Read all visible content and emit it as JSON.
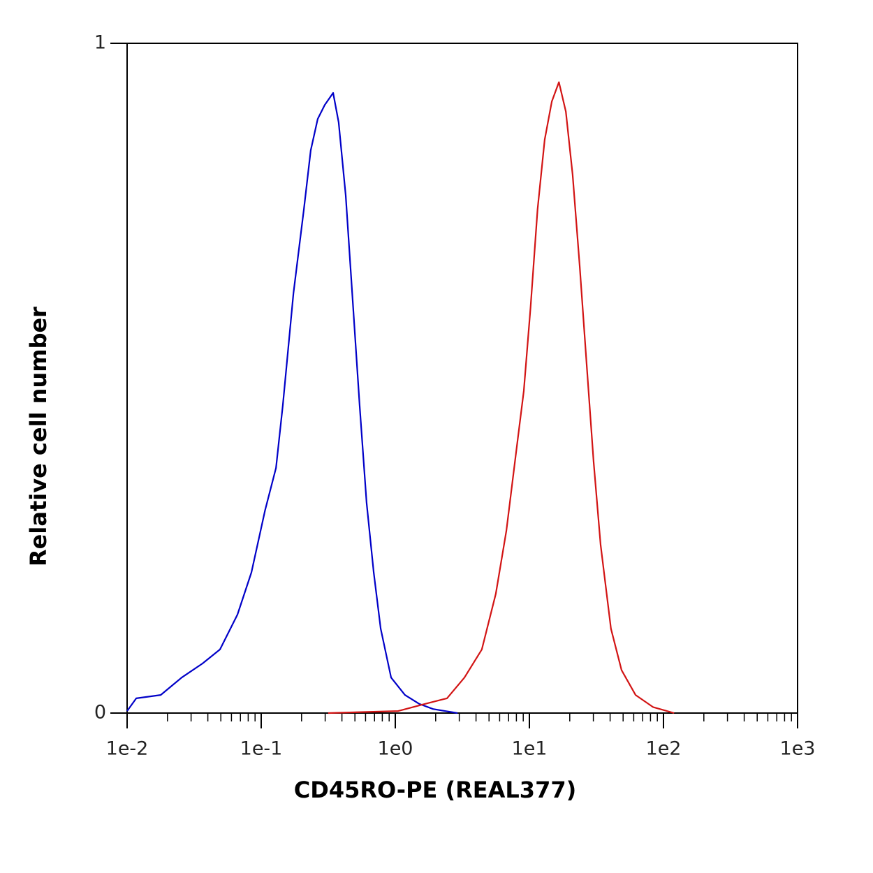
{
  "chart_data": {
    "type": "line",
    "xlabel": "CD45RO-PE (REAL377)",
    "ylabel": "Relative cell number",
    "xscale": "log",
    "xlim": [
      0.01,
      1000
    ],
    "ylim": [
      0,
      1
    ],
    "xticks": [
      {
        "value": 0.01,
        "label": "1e-2"
      },
      {
        "value": 0.1,
        "label": "1e-1"
      },
      {
        "value": 1,
        "label": "1e0"
      },
      {
        "value": 10,
        "label": "1e1"
      },
      {
        "value": 100,
        "label": "1e2"
      },
      {
        "value": 1000,
        "label": "1e3"
      }
    ],
    "xminorticks": [
      0.02,
      0.03,
      0.04,
      0.05,
      0.06,
      0.07,
      0.08,
      0.09,
      0.2,
      0.3,
      0.4,
      0.5,
      0.6,
      0.7,
      0.8,
      0.9,
      2,
      3,
      4,
      5,
      6,
      7,
      8,
      9,
      20,
      30,
      40,
      50,
      60,
      70,
      80,
      90,
      200,
      300,
      400,
      500,
      600,
      700,
      800,
      900
    ],
    "yticks": [
      0,
      1
    ],
    "grid": false,
    "series": [
      {
        "color": "#0000c8",
        "x": [
          0.01,
          0.0117,
          0.0178,
          0.0255,
          0.0365,
          0.0493,
          0.0665,
          0.0845,
          0.107,
          0.129,
          0.145,
          0.174,
          0.208,
          0.234,
          0.264,
          0.298,
          0.344,
          0.378,
          0.427,
          0.481,
          0.542,
          0.611,
          0.69,
          0.778,
          0.931,
          1.18,
          1.5,
          1.91,
          2.91
        ],
        "values": [
          0.003,
          0.022,
          0.027,
          0.053,
          0.074,
          0.095,
          0.147,
          0.21,
          0.303,
          0.366,
          0.46,
          0.627,
          0.752,
          0.84,
          0.887,
          0.908,
          0.926,
          0.882,
          0.773,
          0.616,
          0.46,
          0.314,
          0.21,
          0.126,
          0.053,
          0.027,
          0.014,
          0.006,
          0
        ]
      },
      {
        "color": "#d21414",
        "x": [
          0.316,
          1.05,
          1.69,
          2.43,
          3.28,
          4.42,
          5.62,
          6.73,
          8.05,
          9.08,
          10.2,
          11.5,
          13.0,
          14.7,
          16.6,
          18.7,
          21.0,
          23.7,
          26.7,
          30.1,
          34.0,
          40.6,
          48.7,
          61.9,
          83.5,
          120
        ],
        "values": [
          0,
          0.003,
          0.014,
          0.022,
          0.053,
          0.095,
          0.178,
          0.272,
          0.397,
          0.481,
          0.606,
          0.752,
          0.856,
          0.913,
          0.942,
          0.898,
          0.804,
          0.668,
          0.522,
          0.376,
          0.251,
          0.126,
          0.064,
          0.027,
          0.009,
          0
        ]
      }
    ]
  }
}
